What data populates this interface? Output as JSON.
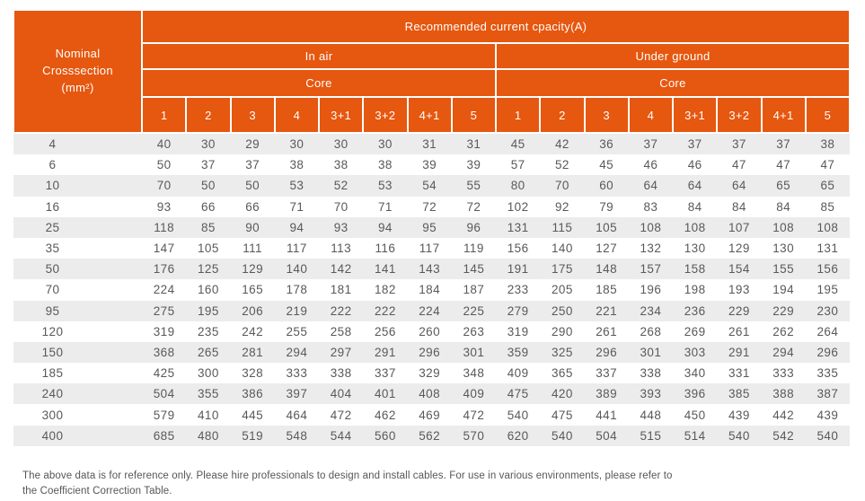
{
  "colors": {
    "header_orange": "#E6570F",
    "stripe_gray": "#ECECEC",
    "body_text": "#58595B",
    "header_text": "#FFFFFF"
  },
  "table": {
    "corner_header": {
      "lines": [
        "Nominal",
        "Crosssection",
        "(mm²)"
      ]
    },
    "title": "Recommended current cpacity(A)",
    "groups": [
      {
        "label": "In air",
        "core_label": "Core",
        "columns": [
          "1",
          "2",
          "3",
          "4",
          "3+1",
          "3+2",
          "4+1",
          "5"
        ]
      },
      {
        "label": "Under ground",
        "core_label": "Core",
        "columns": [
          "1",
          "2",
          "3",
          "4",
          "3+1",
          "3+2",
          "4+1",
          "5"
        ]
      }
    ],
    "rows": [
      {
        "size": "4",
        "in_air": [
          40,
          30,
          29,
          30,
          30,
          30,
          31,
          31
        ],
        "under_ground": [
          45,
          42,
          36,
          37,
          37,
          37,
          37,
          38
        ]
      },
      {
        "size": "6",
        "in_air": [
          50,
          37,
          37,
          38,
          38,
          38,
          39,
          39
        ],
        "under_ground": [
          57,
          52,
          45,
          46,
          46,
          47,
          47,
          47
        ]
      },
      {
        "size": "10",
        "in_air": [
          70,
          50,
          50,
          53,
          52,
          53,
          54,
          55
        ],
        "under_ground": [
          80,
          70,
          60,
          64,
          64,
          64,
          65,
          65
        ]
      },
      {
        "size": "16",
        "in_air": [
          93,
          66,
          66,
          71,
          70,
          71,
          72,
          72
        ],
        "under_ground": [
          102,
          92,
          79,
          83,
          84,
          84,
          84,
          85
        ]
      },
      {
        "size": "25",
        "in_air": [
          118,
          85,
          90,
          94,
          93,
          94,
          95,
          96
        ],
        "under_ground": [
          131,
          115,
          105,
          108,
          108,
          107,
          108,
          108
        ]
      },
      {
        "size": "35",
        "in_air": [
          147,
          105,
          111,
          117,
          113,
          116,
          117,
          119
        ],
        "under_ground": [
          156,
          140,
          127,
          132,
          130,
          129,
          130,
          131
        ]
      },
      {
        "size": "50",
        "in_air": [
          176,
          125,
          129,
          140,
          142,
          141,
          143,
          145
        ],
        "under_ground": [
          191,
          175,
          148,
          157,
          158,
          154,
          155,
          156
        ]
      },
      {
        "size": "70",
        "in_air": [
          224,
          160,
          165,
          178,
          181,
          182,
          184,
          187
        ],
        "under_ground": [
          233,
          205,
          185,
          196,
          198,
          193,
          194,
          195
        ]
      },
      {
        "size": "95",
        "in_air": [
          275,
          195,
          206,
          219,
          222,
          222,
          224,
          225
        ],
        "under_ground": [
          279,
          250,
          221,
          234,
          236,
          229,
          229,
          230
        ]
      },
      {
        "size": "120",
        "in_air": [
          319,
          235,
          242,
          255,
          258,
          256,
          260,
          263
        ],
        "under_ground": [
          319,
          290,
          261,
          268,
          269,
          261,
          262,
          264
        ]
      },
      {
        "size": "150",
        "in_air": [
          368,
          265,
          281,
          294,
          297,
          291,
          296,
          301
        ],
        "under_ground": [
          359,
          325,
          296,
          301,
          303,
          291,
          294,
          296
        ]
      },
      {
        "size": "185",
        "in_air": [
          425,
          300,
          328,
          333,
          338,
          337,
          329,
          348
        ],
        "under_ground": [
          409,
          365,
          337,
          338,
          340,
          331,
          333,
          335
        ]
      },
      {
        "size": "240",
        "in_air": [
          504,
          355,
          386,
          397,
          404,
          401,
          408,
          409
        ],
        "under_ground": [
          475,
          420,
          389,
          393,
          396,
          385,
          388,
          387
        ]
      },
      {
        "size": "300",
        "in_air": [
          579,
          410,
          445,
          464,
          472,
          462,
          469,
          472
        ],
        "under_ground": [
          540,
          475,
          441,
          448,
          450,
          439,
          442,
          439
        ]
      },
      {
        "size": "400",
        "in_air": [
          685,
          480,
          519,
          548,
          544,
          560,
          562,
          570
        ],
        "under_ground": [
          620,
          540,
          504,
          515,
          514,
          540,
          542,
          540
        ]
      }
    ]
  },
  "footer": {
    "lines": [
      "The above data is for reference only. Please hire professionals to design and install cables. For use in various environments, please refer to",
      "the Coefficient Correction Table."
    ]
  }
}
